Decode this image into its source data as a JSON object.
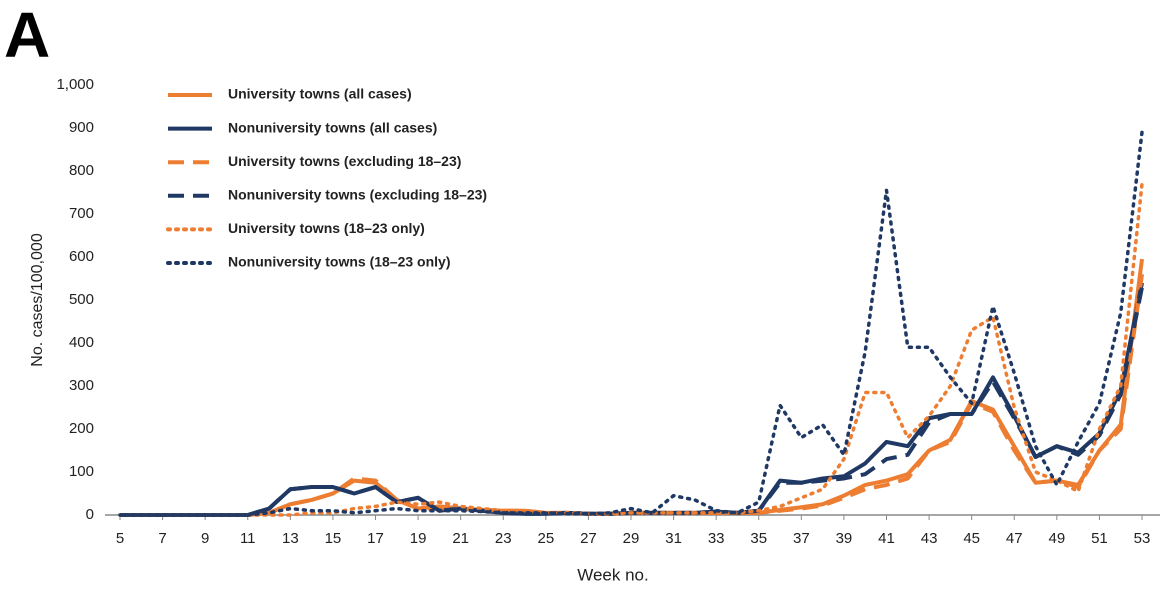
{
  "chart_data": {
    "type": "line",
    "panel_label": "A",
    "x_label": "Week no.",
    "y_label": "No. cases/100,000",
    "x": [
      5,
      6,
      7,
      8,
      9,
      10,
      11,
      12,
      13,
      14,
      15,
      16,
      17,
      18,
      19,
      20,
      21,
      22,
      23,
      24,
      25,
      26,
      27,
      28,
      29,
      30,
      31,
      32,
      33,
      34,
      35,
      36,
      37,
      38,
      39,
      40,
      41,
      42,
      43,
      44,
      45,
      46,
      47,
      48,
      49,
      50,
      51,
      52,
      53
    ],
    "xlim": [
      5,
      53
    ],
    "xticks": [
      5,
      7,
      9,
      11,
      13,
      15,
      17,
      19,
      21,
      23,
      25,
      27,
      29,
      31,
      33,
      35,
      37,
      39,
      41,
      43,
      45,
      47,
      49,
      51,
      53
    ],
    "ylim": [
      0,
      1000
    ],
    "yticks": [
      0,
      100,
      200,
      300,
      400,
      500,
      600,
      700,
      800,
      900,
      {
        "value": 1000,
        "label": "1,000"
      }
    ],
    "series": [
      {
        "name": "University towns (all cases)",
        "color": "#ED7D31",
        "style": "solid",
        "values": [
          0,
          0,
          0,
          0,
          0,
          0,
          0,
          5,
          25,
          35,
          50,
          80,
          75,
          35,
          15,
          20,
          15,
          12,
          10,
          10,
          5,
          5,
          3,
          3,
          5,
          5,
          5,
          5,
          5,
          5,
          5,
          12,
          18,
          25,
          45,
          70,
          80,
          95,
          150,
          175,
          265,
          245,
          160,
          75,
          80,
          70,
          150,
          210,
          595
        ]
      },
      {
        "name": "Nonuniversity towns (all cases)",
        "color": "#1F3864",
        "style": "solid",
        "values": [
          0,
          0,
          0,
          0,
          0,
          0,
          0,
          15,
          60,
          65,
          65,
          50,
          65,
          30,
          40,
          10,
          15,
          10,
          5,
          3,
          3,
          5,
          3,
          3,
          5,
          5,
          5,
          5,
          8,
          5,
          10,
          80,
          75,
          85,
          90,
          120,
          170,
          160,
          225,
          235,
          235,
          320,
          230,
          135,
          160,
          145,
          190,
          290,
          540
        ]
      },
      {
        "name": "University towns (excluding 18–23)",
        "color": "#ED7D31",
        "style": "dashed",
        "values": [
          0,
          0,
          0,
          0,
          0,
          0,
          0,
          5,
          25,
          35,
          50,
          85,
          80,
          35,
          15,
          15,
          15,
          12,
          10,
          10,
          5,
          5,
          3,
          3,
          5,
          5,
          5,
          5,
          5,
          5,
          5,
          10,
          15,
          22,
          40,
          60,
          70,
          85,
          150,
          170,
          260,
          240,
          150,
          75,
          80,
          65,
          150,
          200,
          560
        ]
      },
      {
        "name": "Nonuniversity towns (excluding 18–23)",
        "color": "#1F3864",
        "style": "dashed",
        "values": [
          0,
          0,
          0,
          0,
          0,
          0,
          0,
          15,
          60,
          65,
          65,
          50,
          65,
          30,
          40,
          10,
          15,
          10,
          5,
          3,
          3,
          5,
          3,
          3,
          5,
          5,
          5,
          5,
          8,
          5,
          10,
          75,
          75,
          80,
          85,
          95,
          130,
          140,
          215,
          235,
          235,
          310,
          225,
          135,
          160,
          140,
          185,
          280,
          530
        ]
      },
      {
        "name": "University towns (18–23 only)",
        "color": "#ED7D31",
        "style": "dotted",
        "values": [
          0,
          0,
          0,
          0,
          0,
          0,
          0,
          0,
          0,
          5,
          5,
          15,
          20,
          30,
          25,
          30,
          20,
          15,
          10,
          8,
          5,
          5,
          3,
          3,
          5,
          5,
          5,
          5,
          5,
          5,
          10,
          20,
          40,
          60,
          130,
          285,
          285,
          180,
          230,
          300,
          430,
          460,
          250,
          100,
          80,
          55,
          200,
          300,
          770
        ]
      },
      {
        "name": "Nonuniversity towns (18–23 only)",
        "color": "#1F3864",
        "style": "dotted",
        "values": [
          0,
          0,
          0,
          0,
          0,
          0,
          0,
          5,
          15,
          10,
          10,
          5,
          10,
          15,
          10,
          10,
          10,
          8,
          5,
          5,
          5,
          3,
          3,
          5,
          15,
          5,
          45,
          35,
          10,
          5,
          30,
          255,
          180,
          210,
          140,
          380,
          755,
          390,
          390,
          320,
          260,
          485,
          330,
          160,
          70,
          170,
          260,
          470,
          890
        ]
      }
    ]
  }
}
